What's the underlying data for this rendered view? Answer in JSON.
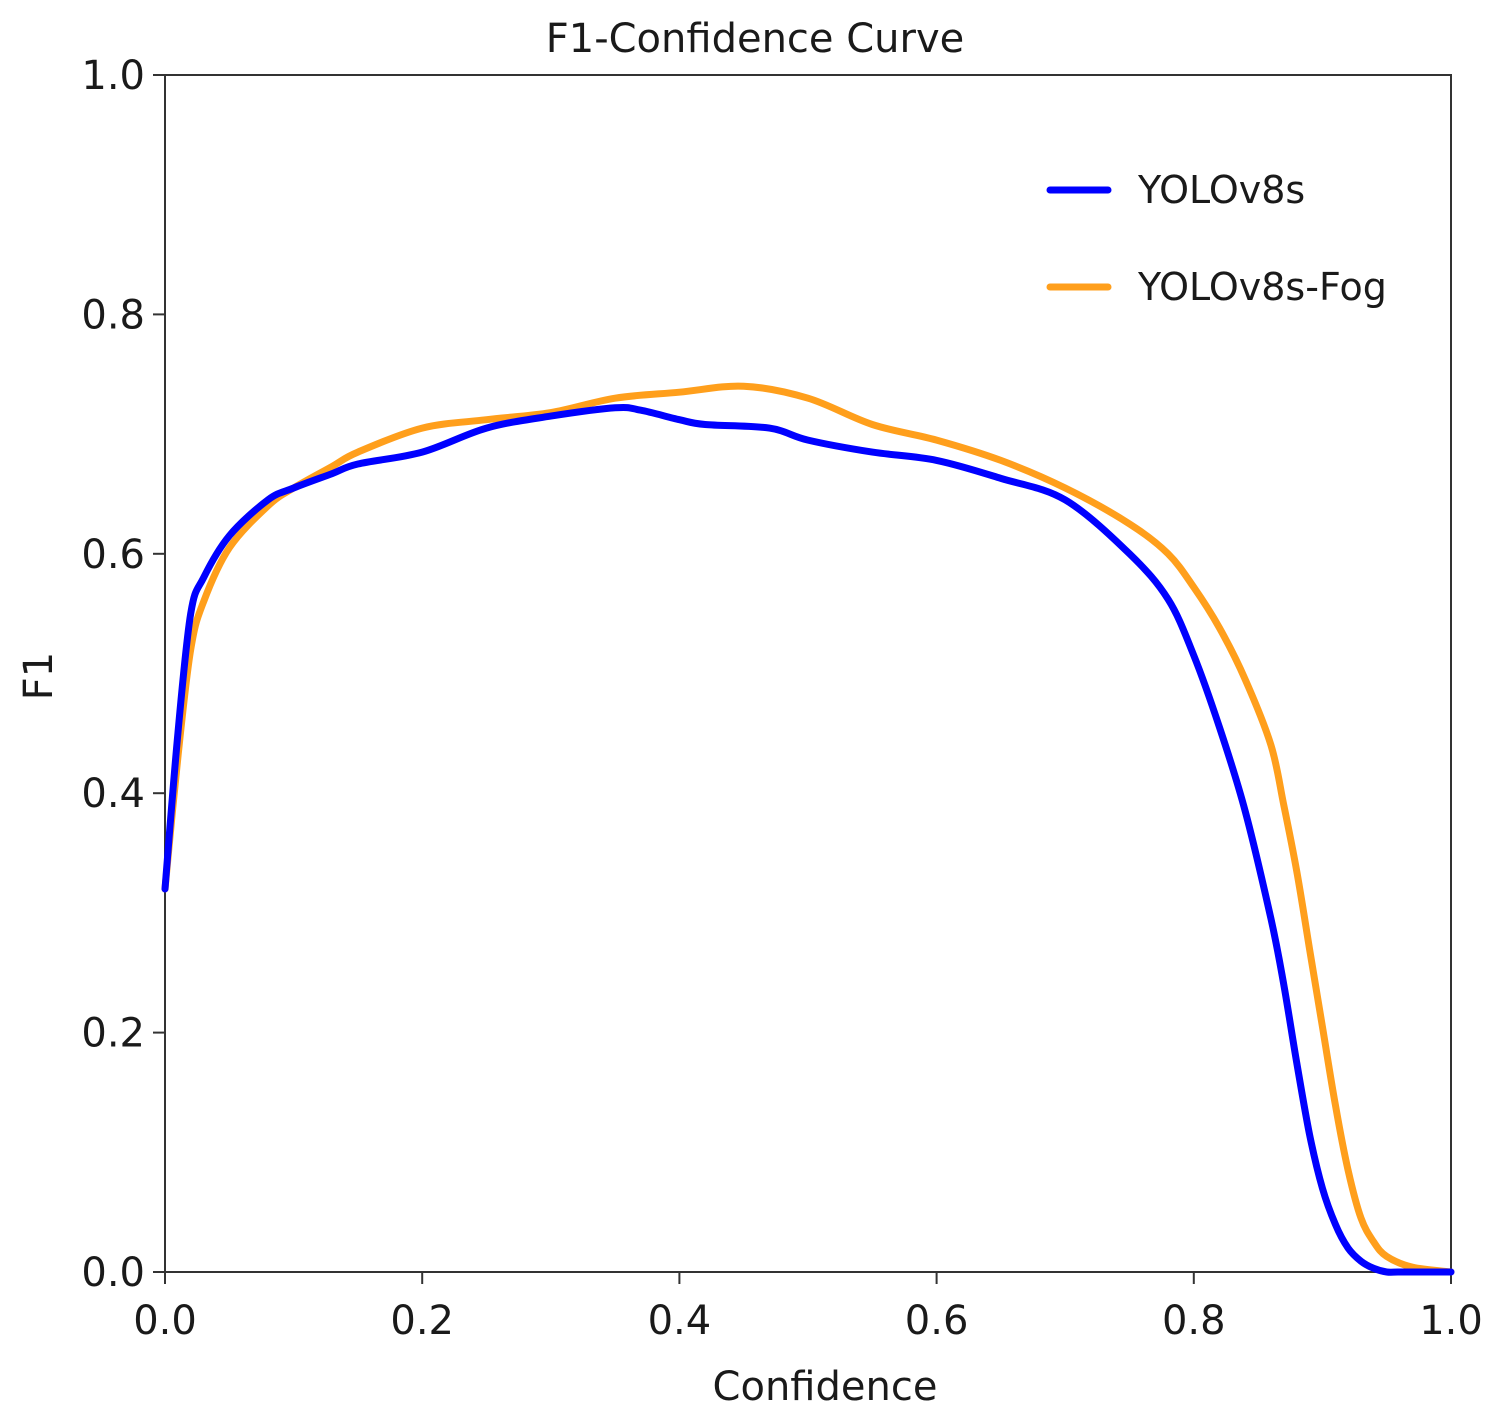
{
  "chart_data": {
    "type": "line",
    "title": "F1-Confidence Curve",
    "xlabel": "Confidence",
    "ylabel": "F1",
    "xlim": [
      0.0,
      1.0
    ],
    "ylim": [
      0.0,
      1.0
    ],
    "xticks": [
      "0.0",
      "0.2",
      "0.4",
      "0.6",
      "0.8",
      "1.0"
    ],
    "yticks": [
      "0.0",
      "0.2",
      "0.4",
      "0.6",
      "0.8",
      "1.0"
    ],
    "grid": false,
    "legend_position": "top-right",
    "series": [
      {
        "name": "YOLOv8s",
        "color": "#0000ff",
        "x": [
          0.0,
          0.01,
          0.02,
          0.03,
          0.05,
          0.08,
          0.1,
          0.13,
          0.15,
          0.2,
          0.25,
          0.3,
          0.35,
          0.37,
          0.4,
          0.42,
          0.47,
          0.5,
          0.55,
          0.6,
          0.65,
          0.7,
          0.75,
          0.78,
          0.8,
          0.82,
          0.84,
          0.86,
          0.87,
          0.88,
          0.89,
          0.9,
          0.91,
          0.92,
          0.93,
          0.94,
          0.95,
          0.96,
          0.98,
          1.0
        ],
        "values": [
          0.32,
          0.45,
          0.55,
          0.58,
          0.615,
          0.645,
          0.655,
          0.667,
          0.675,
          0.685,
          0.705,
          0.715,
          0.722,
          0.72,
          0.712,
          0.708,
          0.705,
          0.695,
          0.685,
          0.678,
          0.663,
          0.645,
          0.6,
          0.562,
          0.515,
          0.455,
          0.385,
          0.295,
          0.24,
          0.175,
          0.115,
          0.07,
          0.04,
          0.02,
          0.009,
          0.003,
          0.0,
          0.0,
          0.0,
          0.0
        ]
      },
      {
        "name": "YOLOv8s-Fog",
        "color": "#ff9f1c",
        "x": [
          0.0,
          0.01,
          0.02,
          0.03,
          0.05,
          0.08,
          0.1,
          0.13,
          0.15,
          0.2,
          0.25,
          0.3,
          0.35,
          0.4,
          0.45,
          0.5,
          0.55,
          0.6,
          0.65,
          0.7,
          0.75,
          0.78,
          0.8,
          0.82,
          0.84,
          0.86,
          0.87,
          0.88,
          0.89,
          0.9,
          0.91,
          0.92,
          0.93,
          0.94,
          0.95,
          0.97,
          1.0
        ],
        "values": [
          0.32,
          0.43,
          0.52,
          0.56,
          0.605,
          0.64,
          0.655,
          0.673,
          0.685,
          0.705,
          0.712,
          0.718,
          0.73,
          0.735,
          0.74,
          0.73,
          0.708,
          0.695,
          0.678,
          0.655,
          0.625,
          0.6,
          0.572,
          0.538,
          0.495,
          0.44,
          0.39,
          0.335,
          0.27,
          0.205,
          0.14,
          0.085,
          0.045,
          0.025,
          0.013,
          0.004,
          0.0
        ]
      }
    ]
  }
}
